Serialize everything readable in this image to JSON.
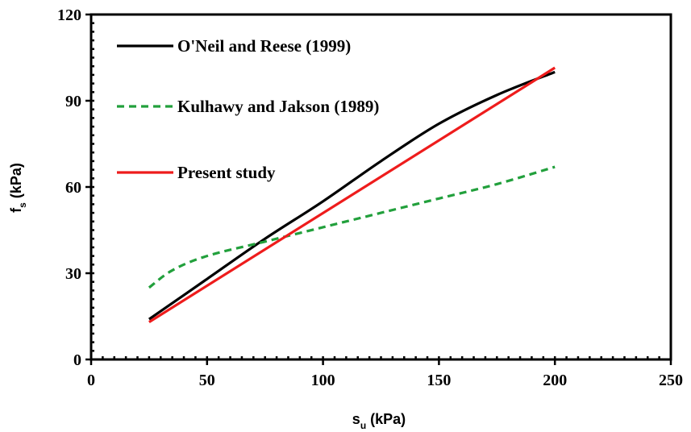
{
  "chart_data": {
    "type": "line",
    "xlabel": {
      "main": "s",
      "sub": "u",
      "unit": " (kPa)"
    },
    "ylabel": {
      "main": "f",
      "sub": "s",
      "unit": " (kPa)"
    },
    "xlim": [
      0,
      250
    ],
    "ylim": [
      0,
      120
    ],
    "xticks": [
      "0",
      "50",
      "100",
      "150",
      "200",
      "250"
    ],
    "yticks": [
      "0",
      "30",
      "60",
      "90",
      "120"
    ],
    "grid": false,
    "legend_position": "top-left",
    "series": [
      {
        "name": "O'Neil and Reese (1999)",
        "color": "#000000",
        "style": "solid",
        "x": [
          25,
          50,
          75,
          100,
          125,
          150,
          175,
          200
        ],
        "y": [
          14,
          28,
          42,
          55,
          69,
          82,
          92,
          100
        ]
      },
      {
        "name": "Kulhawy and Jakson (1989)",
        "color": "#22a03c",
        "style": "dashed",
        "x": [
          25,
          35,
          50,
          75,
          100,
          125,
          150,
          175,
          200
        ],
        "y": [
          25,
          31,
          36,
          41,
          46,
          51,
          56,
          61,
          67
        ]
      },
      {
        "name": "Present study",
        "color": "#ee1c1c",
        "style": "solid",
        "x": [
          25,
          200
        ],
        "y": [
          13,
          101.5
        ]
      }
    ]
  }
}
